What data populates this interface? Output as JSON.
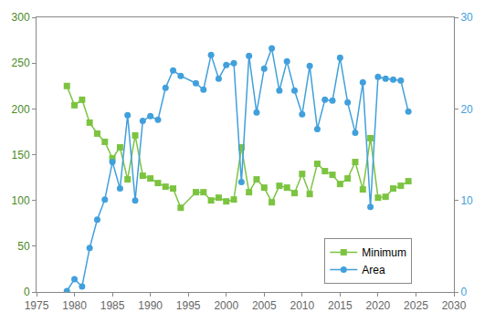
{
  "chart_data": {
    "type": "line",
    "x": [
      1979,
      1980,
      1981,
      1982,
      1983,
      1984,
      1985,
      1986,
      1987,
      1988,
      1989,
      1990,
      1991,
      1992,
      1993,
      1994,
      1996,
      1997,
      1998,
      1999,
      2000,
      2001,
      2002,
      2003,
      2004,
      2005,
      2006,
      2007,
      2008,
      2009,
      2010,
      2011,
      2012,
      2013,
      2014,
      2015,
      2016,
      2017,
      2018,
      2019,
      2020,
      2021,
      2022,
      2023,
      2024
    ],
    "series": [
      {
        "name": "Minimum",
        "color": "#7cc440",
        "marker": "square",
        "axis": "y",
        "values": [
          225,
          204,
          210,
          185,
          173,
          164,
          146,
          158,
          123,
          171,
          127,
          124,
          119,
          115,
          113,
          92,
          109,
          109,
          100,
          103,
          99,
          101,
          158,
          109,
          123,
          114,
          98,
          116,
          114,
          108,
          129,
          107,
          140,
          132,
          128,
          118,
          124,
          142,
          112,
          168,
          103,
          104,
          113,
          116,
          121
        ]
      },
      {
        "name": "Area",
        "color": "#41a0dc",
        "marker": "circle",
        "axis": "y2",
        "values": [
          0.1,
          1.4,
          0.6,
          4.8,
          7.9,
          10.1,
          14.2,
          11.3,
          19.3,
          10.0,
          18.7,
          19.2,
          18.8,
          22.3,
          24.2,
          23.6,
          22.8,
          22.1,
          25.9,
          23.3,
          24.8,
          25.0,
          12.0,
          25.8,
          19.6,
          24.4,
          26.6,
          22.0,
          25.2,
          22.0,
          19.4,
          24.7,
          17.8,
          21.0,
          20.9,
          25.6,
          20.7,
          17.4,
          22.9,
          9.3,
          23.5,
          23.3,
          23.2,
          23.1,
          19.7
        ]
      }
    ],
    "xlim": [
      1975,
      2030
    ],
    "xticks": [
      1975,
      1980,
      1985,
      1990,
      1995,
      2000,
      2005,
      2010,
      2015,
      2020,
      2025,
      2030
    ],
    "ylim": [
      0,
      300
    ],
    "yticks": [
      0,
      50,
      100,
      150,
      200,
      250,
      300
    ],
    "y2lim": [
      0,
      30
    ],
    "y2ticks": [
      0,
      10,
      20,
      30
    ],
    "grid": false,
    "legend": "bottom right"
  }
}
